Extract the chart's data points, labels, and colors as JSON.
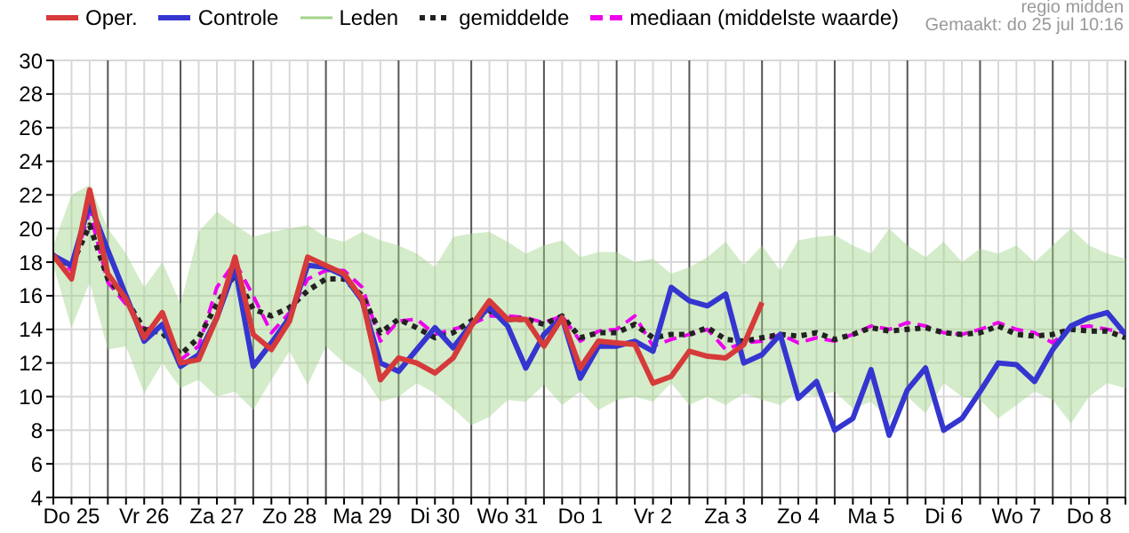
{
  "chart_data": {
    "type": "line",
    "annotations": [
      "regio midden",
      "Gemaakt: do 25 jul 10:16"
    ],
    "categories": [
      null,
      "Do 25",
      null,
      null,
      null,
      "Vr 26",
      null,
      null,
      null,
      "Za 27",
      null,
      null,
      null,
      "Zo 28",
      null,
      null,
      null,
      "Ma 29",
      null,
      null,
      null,
      "Di 30",
      null,
      null,
      null,
      "Wo 31",
      null,
      null,
      null,
      "Do 1",
      null,
      null,
      null,
      "Vr 2",
      null,
      null,
      null,
      "Za 3",
      null,
      null,
      null,
      "Zo 4",
      null,
      null,
      null,
      "Ma 5",
      null,
      null,
      null,
      "Di 6",
      null,
      null,
      null,
      "Wo 7",
      null,
      null,
      null,
      "Do 8",
      null,
      null
    ],
    "ylim": [
      4,
      30
    ],
    "yticks": [
      4,
      6,
      8,
      10,
      12,
      14,
      16,
      18,
      20,
      22,
      24,
      26,
      28,
      30
    ],
    "grid": true,
    "legend": "top",
    "marker": "none",
    "series": [
      {
        "name": "Oper.",
        "type": "line",
        "color": "#d63a3a",
        "line_style": "solid",
        "values": [
          18.4,
          17.0,
          22.3,
          17.3,
          15.8,
          13.5,
          15.0,
          12.0,
          12.2,
          14.7,
          18.3,
          13.7,
          12.8,
          14.5,
          18.3,
          17.8,
          17.3,
          15.8,
          11.0,
          12.3,
          12.0,
          11.4,
          12.3,
          14.2,
          15.7,
          14.6,
          14.6,
          13.0,
          14.7,
          11.7,
          13.3,
          13.2,
          13.1,
          10.8,
          11.2,
          12.7,
          12.4,
          12.3,
          13.1,
          15.6,
          null,
          null,
          null,
          null,
          null,
          null,
          null,
          null,
          null,
          null,
          null,
          null,
          null,
          null,
          null,
          null,
          null,
          null,
          null,
          null
        ]
      },
      {
        "name": "Controle",
        "type": "line",
        "color": "#3535d0",
        "line_style": "solid",
        "values": [
          18.4,
          17.8,
          21.5,
          18.7,
          16.0,
          13.3,
          14.3,
          11.8,
          12.5,
          14.7,
          17.7,
          11.8,
          13.2,
          14.7,
          17.8,
          17.7,
          17.2,
          15.7,
          12.0,
          11.5,
          12.8,
          14.1,
          12.9,
          14.3,
          15.3,
          14.2,
          11.7,
          13.7,
          14.7,
          11.1,
          13.0,
          13.0,
          13.3,
          12.7,
          16.5,
          15.7,
          15.4,
          16.1,
          12.0,
          12.5,
          13.7,
          9.9,
          10.9,
          8.0,
          8.7,
          11.6,
          7.7,
          10.4,
          11.7,
          8.0,
          8.7,
          10.3,
          12.0,
          11.9,
          10.9,
          12.8,
          14.2,
          14.7,
          15.0,
          13.7
        ]
      },
      {
        "name": "Leden",
        "type": "area",
        "color": "#9fd48a",
        "values": [
          null,
          null,
          null,
          null,
          null,
          null,
          null,
          null,
          null,
          null,
          null,
          null,
          null,
          null,
          null,
          null,
          null,
          null,
          null,
          null,
          null,
          null,
          null,
          null,
          null,
          null,
          null,
          null,
          null,
          null,
          null,
          null,
          null,
          null,
          null,
          null,
          null,
          null,
          null,
          null,
          null,
          null,
          null,
          null,
          null,
          null,
          null,
          null,
          null,
          null,
          null,
          null,
          null,
          null,
          null,
          null,
          null,
          null,
          null,
          null
        ],
        "upper": [
          19.0,
          22.0,
          22.6,
          20.0,
          18.5,
          16.5,
          18.0,
          15.5,
          19.8,
          21.0,
          20.2,
          19.5,
          19.8,
          20.0,
          20.2,
          19.5,
          19.2,
          19.8,
          19.3,
          19.0,
          18.5,
          17.7,
          19.5,
          19.7,
          19.8,
          19.2,
          18.5,
          19.0,
          19.3,
          18.3,
          18.6,
          18.6,
          18.0,
          18.2,
          17.3,
          17.7,
          18.3,
          19.2,
          17.8,
          19.0,
          17.5,
          19.3,
          19.5,
          19.6,
          19.0,
          18.5,
          20.0,
          19.0,
          18.3,
          19.2,
          18.0,
          18.8,
          18.5,
          19.0,
          18.0,
          19.0,
          20.0,
          19.0,
          18.5,
          18.2
        ],
        "lower": [
          17.8,
          14.1,
          16.8,
          12.8,
          13.0,
          10.2,
          12.0,
          10.5,
          11.0,
          10.0,
          10.3,
          9.2,
          11.0,
          12.7,
          10.7,
          13.0,
          12.0,
          11.3,
          9.7,
          10.0,
          10.8,
          10.2,
          9.3,
          8.3,
          8.8,
          9.8,
          9.7,
          10.7,
          9.5,
          10.3,
          9.2,
          9.8,
          10.0,
          9.7,
          10.8,
          9.5,
          10.0,
          9.5,
          10.2,
          9.8,
          9.5,
          10.3,
          10.0,
          10.3,
          9.3,
          9.7,
          8.6,
          10.0,
          9.0,
          10.8,
          10.0,
          9.8,
          8.7,
          9.5,
          10.3,
          9.8,
          8.4,
          10.0,
          10.8,
          10.5
        ]
      },
      {
        "name": "gemiddelde",
        "type": "line",
        "color": "#222222",
        "line_style": "dotted",
        "values": [
          18.3,
          17.8,
          20.2,
          17.0,
          15.8,
          14.0,
          13.8,
          12.5,
          13.5,
          15.5,
          17.3,
          15.2,
          14.8,
          15.3,
          16.3,
          17.0,
          17.0,
          16.0,
          13.8,
          14.6,
          14.1,
          13.5,
          13.8,
          14.5,
          15.1,
          14.6,
          14.6,
          14.3,
          14.8,
          13.5,
          13.8,
          13.8,
          14.3,
          13.5,
          13.7,
          13.7,
          14.1,
          13.4,
          13.3,
          13.5,
          13.7,
          13.6,
          13.8,
          13.4,
          13.7,
          14.1,
          13.9,
          14.0,
          14.1,
          13.8,
          13.7,
          13.8,
          14.2,
          13.7,
          13.6,
          13.7,
          14.0,
          13.9,
          13.9,
          13.5
        ]
      },
      {
        "name": "mediaan (middelste waarde)",
        "type": "line",
        "color": "#ee00ee",
        "line_style": "dashed",
        "values": [
          18.5,
          17.5,
          21.0,
          16.8,
          15.5,
          14.0,
          14.2,
          12.2,
          13.0,
          16.5,
          18.0,
          16.0,
          13.8,
          15.0,
          17.0,
          17.5,
          17.5,
          16.5,
          13.3,
          14.5,
          14.6,
          13.7,
          14.0,
          14.3,
          14.8,
          14.8,
          14.7,
          14.4,
          14.8,
          13.3,
          13.9,
          14.0,
          14.8,
          13.0,
          13.4,
          13.7,
          14.0,
          12.8,
          13.2,
          13.3,
          13.7,
          13.2,
          13.5,
          13.3,
          13.7,
          14.2,
          14.0,
          14.4,
          14.2,
          13.8,
          13.7,
          14.0,
          14.4,
          14.0,
          13.8,
          13.2,
          14.1,
          14.2,
          14.0,
          13.8
        ]
      }
    ]
  }
}
